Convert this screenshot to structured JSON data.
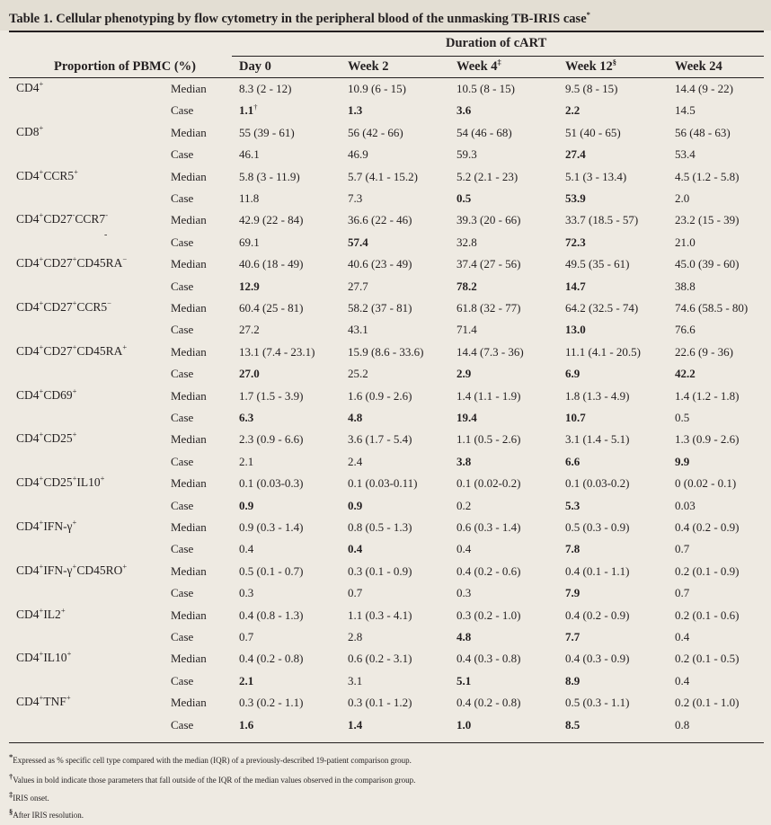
{
  "title": {
    "text": "Table 1. Cellular phenotyping by flow cytometry in the peripheral blood of the unmasking TB-IRIS case",
    "mark": "*"
  },
  "header": {
    "group_label": "Duration of cART",
    "row_label": "Proportion of PBMC (%)",
    "columns": [
      {
        "label": "Day 0",
        "mark": ""
      },
      {
        "label": "Week 2",
        "mark": ""
      },
      {
        "label": "Week 4",
        "mark": "‡"
      },
      {
        "label": "Week 12",
        "mark": "§"
      },
      {
        "label": "Week 24",
        "mark": ""
      }
    ]
  },
  "rows": [
    {
      "parts": [
        [
          "CD4",
          ""
        ],
        [
          "+",
          "sup"
        ]
      ],
      "median": [
        "8.3 (2 - 12)",
        "10.9 (6 - 15)",
        "10.5 (8 - 15)",
        "9.5 (8 - 15)",
        "14.4 (9 - 22)"
      ],
      "case": [
        "1.1",
        "1.3",
        "3.6",
        "2.2",
        "14.5"
      ],
      "bold": [
        0,
        1,
        2,
        3
      ],
      "case_marks": [
        "†",
        "",
        "",
        "",
        ""
      ]
    },
    {
      "parts": [
        [
          "CD8",
          ""
        ],
        [
          "+",
          "sup"
        ]
      ],
      "median": [
        "55 (39 - 61)",
        "56 (42 - 66)",
        "54 (46 - 68)",
        "51 (40 - 65)",
        "56 (48 - 63)"
      ],
      "case": [
        "46.1",
        "46.9",
        "59.3",
        "27.4",
        "53.4"
      ],
      "bold": [
        3
      ]
    },
    {
      "parts": [
        [
          "CD4",
          ""
        ],
        [
          "+",
          "sup"
        ],
        [
          "CCR5",
          ""
        ],
        [
          "+",
          "sup"
        ]
      ],
      "median": [
        "5.8 (3 - 11.9)",
        "5.7 (4.1 - 15.2)",
        "5.2 (2.1 - 23)",
        "5.1 (3 - 13.4)",
        "4.5 (1.2 - 5.8)"
      ],
      "case": [
        "11.8",
        "7.3",
        "0.5",
        "53.9",
        "2.0"
      ],
      "bold": [
        2,
        3
      ]
    },
    {
      "parts": [
        [
          "CD4",
          ""
        ],
        [
          "+",
          "sup"
        ],
        [
          "CD27",
          ""
        ],
        [
          "-",
          "sup"
        ],
        [
          "CCR7",
          ""
        ],
        [
          "-",
          "sup"
        ]
      ],
      "extra": "-",
      "median": [
        "42.9 (22 - 84)",
        "36.6 (22 - 46)",
        "39.3 (20 - 66)",
        "33.7 (18.5 - 57)",
        "23.2 (15 - 39)"
      ],
      "case": [
        "69.1",
        "57.4",
        "32.8",
        "72.3",
        "21.0"
      ],
      "bold": [
        1,
        3
      ]
    },
    {
      "parts": [
        [
          "CD4",
          ""
        ],
        [
          "+",
          "sup"
        ],
        [
          "CD27",
          ""
        ],
        [
          "+",
          "sup"
        ],
        [
          "CD45RA",
          ""
        ],
        [
          "−",
          "sup"
        ]
      ],
      "median": [
        "40.6 (18 - 49)",
        "40.6 (23 - 49)",
        "37.4 (27 - 56)",
        "49.5 (35 - 61)",
        "45.0 (39 - 60)"
      ],
      "case": [
        "12.9",
        "27.7",
        "78.2",
        "14.7",
        "38.8"
      ],
      "bold": [
        0,
        2,
        3
      ]
    },
    {
      "parts": [
        [
          "CD4",
          ""
        ],
        [
          "+",
          "sup"
        ],
        [
          "CD27",
          ""
        ],
        [
          "+",
          "sup"
        ],
        [
          "CCR5",
          ""
        ],
        [
          "−",
          "sup"
        ]
      ],
      "median": [
        "60.4 (25 - 81)",
        "58.2 (37 - 81)",
        "61.8 (32 - 77)",
        "64.2 (32.5 - 74)",
        "74.6 (58.5 - 80)"
      ],
      "case": [
        "27.2",
        "43.1",
        "71.4",
        "13.0",
        "76.6"
      ],
      "bold": [
        3
      ]
    },
    {
      "parts": [
        [
          "CD4",
          ""
        ],
        [
          "+",
          "sup"
        ],
        [
          "CD27",
          ""
        ],
        [
          "+",
          "sup"
        ],
        [
          "CD45RA",
          ""
        ],
        [
          "+",
          "sup"
        ]
      ],
      "median": [
        "13.1 (7.4 - 23.1)",
        "15.9 (8.6 - 33.6)",
        "14.4 (7.3 - 36)",
        "11.1 (4.1 - 20.5)",
        "22.6 (9 - 36)"
      ],
      "case": [
        "27.0",
        "25.2",
        "2.9",
        "6.9",
        "42.2"
      ],
      "bold": [
        0,
        2,
        3,
        4
      ]
    },
    {
      "parts": [
        [
          "CD4",
          ""
        ],
        [
          "+",
          "sup"
        ],
        [
          "CD69",
          ""
        ],
        [
          "+",
          "sup"
        ]
      ],
      "median": [
        "1.7 (1.5 - 3.9)",
        "1.6 (0.9 - 2.6)",
        "1.4 (1.1 - 1.9)",
        "1.8 (1.3 - 4.9)",
        "1.4 (1.2 - 1.8)"
      ],
      "case": [
        "6.3",
        "4.8",
        "19.4",
        "10.7",
        "0.5"
      ],
      "bold": [
        0,
        1,
        2,
        3
      ]
    },
    {
      "parts": [
        [
          "CD4",
          ""
        ],
        [
          "+",
          "sup"
        ],
        [
          "CD25",
          ""
        ],
        [
          "+",
          "sup"
        ]
      ],
      "median": [
        "2.3 (0.9 - 6.6)",
        "3.6 (1.7 - 5.4)",
        "1.1 (0.5 - 2.6)",
        "3.1 (1.4 - 5.1)",
        "1.3 (0.9 - 2.6)"
      ],
      "case": [
        "2.1",
        "2.4",
        "3.8",
        "6.6",
        "9.9"
      ],
      "bold": [
        2,
        3,
        4
      ]
    },
    {
      "parts": [
        [
          "CD4",
          ""
        ],
        [
          "+",
          "sup"
        ],
        [
          "CD25",
          ""
        ],
        [
          "+",
          "sup"
        ],
        [
          "IL10",
          ""
        ],
        [
          "+",
          "sup"
        ]
      ],
      "median": [
        "0.1 (0.03-0.3)",
        "0.1 (0.03-0.11)",
        "0.1 (0.02-0.2)",
        "0.1 (0.03-0.2)",
        "0 (0.02 - 0.1)"
      ],
      "case": [
        "0.9",
        "0.9",
        "0.2",
        "5.3",
        "0.03"
      ],
      "bold": [
        0,
        1,
        3
      ]
    },
    {
      "parts": [
        [
          "CD4",
          ""
        ],
        [
          "+",
          "sup"
        ],
        [
          "IFN-γ",
          ""
        ],
        [
          "+",
          "sup"
        ]
      ],
      "median": [
        "0.9 (0.3 - 1.4)",
        "0.8 (0.5 - 1.3)",
        "0.6 (0.3 - 1.4)",
        "0.5 (0.3 - 0.9)",
        "0.4 (0.2 - 0.9)"
      ],
      "case": [
        "0.4",
        "0.4",
        "0.4",
        "7.8",
        "0.7"
      ],
      "bold": [
        1,
        3
      ]
    },
    {
      "parts": [
        [
          "CD4",
          ""
        ],
        [
          "+",
          "sup"
        ],
        [
          "IFN-γ",
          ""
        ],
        [
          "+",
          "sup"
        ],
        [
          "CD45RO",
          ""
        ],
        [
          "+",
          "sup"
        ]
      ],
      "median": [
        "0.5 (0.1 - 0.7)",
        "0.3 (0.1 - 0.9)",
        "0.4 (0.2 - 0.6)",
        "0.4 (0.1 - 1.1)",
        "0.2 (0.1 - 0.9)"
      ],
      "case": [
        "0.3",
        "0.7",
        "0.3",
        "7.9",
        "0.7"
      ],
      "bold": [
        3
      ]
    },
    {
      "parts": [
        [
          "CD4",
          ""
        ],
        [
          "+",
          "sup"
        ],
        [
          "IL2",
          ""
        ],
        [
          "+",
          "sup"
        ]
      ],
      "median": [
        "0.4 (0.8 - 1.3)",
        "1.1 (0.3 - 4.1)",
        "0.3 (0.2 - 1.0)",
        "0.4 (0.2 - 0.9)",
        "0.2 (0.1 - 0.6)"
      ],
      "case": [
        "0.7",
        "2.8",
        "4.8",
        "7.7",
        "0.4"
      ],
      "bold": [
        2,
        3
      ]
    },
    {
      "parts": [
        [
          "CD4",
          ""
        ],
        [
          "+",
          "sup"
        ],
        [
          "IL10",
          ""
        ],
        [
          "+",
          "sup"
        ]
      ],
      "median": [
        "0.4 (0.2 - 0.8)",
        "0.6 (0.2 - 3.1)",
        "0.4 (0.3 - 0.8)",
        "0.4 (0.3 - 0.9)",
        "0.2 (0.1 - 0.5)"
      ],
      "case": [
        "2.1",
        "3.1",
        "5.1",
        "8.9",
        "0.4"
      ],
      "bold": [
        0,
        2,
        3
      ]
    },
    {
      "parts": [
        [
          "CD4",
          ""
        ],
        [
          "+",
          "sup"
        ],
        [
          "TNF",
          ""
        ],
        [
          "+",
          "sup"
        ]
      ],
      "median": [
        "0.3 (0.2 - 1.1)",
        "0.3 (0.1 - 1.2)",
        "0.4 (0.2 - 0.8)",
        "0.5 (0.3 - 1.1)",
        "0.2 (0.1 - 1.0)"
      ],
      "case": [
        "1.6",
        "1.4",
        "1.0",
        "8.5",
        "0.8"
      ],
      "bold": [
        0,
        1,
        2,
        3
      ]
    }
  ],
  "row_types": {
    "median": "Median",
    "case": "Case"
  },
  "footnotes": [
    {
      "mark": "*",
      "text": "Expressed as % specific cell type compared with the median (IQR) of a previously-described 19-patient comparison group."
    },
    {
      "mark": "†",
      "text": "Values in bold indicate those parameters that fall outside of the IQR of the median values observed in the comparison group."
    },
    {
      "mark": "‡",
      "text": "IRIS onset."
    },
    {
      "mark": "§",
      "text": "After IRIS resolution."
    }
  ]
}
